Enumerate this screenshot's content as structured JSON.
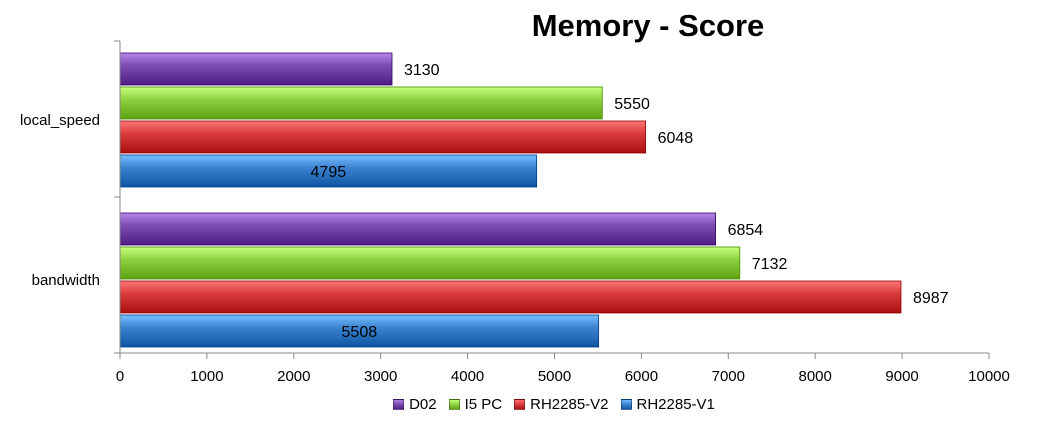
{
  "chart_data": {
    "type": "bar",
    "orientation": "horizontal",
    "title": "Memory - Score",
    "categories": [
      "local_speed",
      "bandwidth"
    ],
    "series": [
      {
        "name": "D02",
        "values": [
          3130,
          6854
        ],
        "color": "#7b4bb0"
      },
      {
        "name": "I5 PC",
        "values": [
          5550,
          7132
        ],
        "color": "#8ccf3f"
      },
      {
        "name": "RH2285-V2",
        "values": [
          6048,
          8987
        ],
        "color": "#d83b3b"
      },
      {
        "name": "RH2285-V1",
        "values": [
          4795,
          5508
        ],
        "color": "#3b82d0"
      }
    ],
    "xlim": [
      0,
      10000
    ],
    "xticks": [
      0,
      1000,
      2000,
      3000,
      4000,
      5000,
      6000,
      7000,
      8000,
      9000,
      10000
    ],
    "grid": false,
    "legend": "bottom"
  }
}
